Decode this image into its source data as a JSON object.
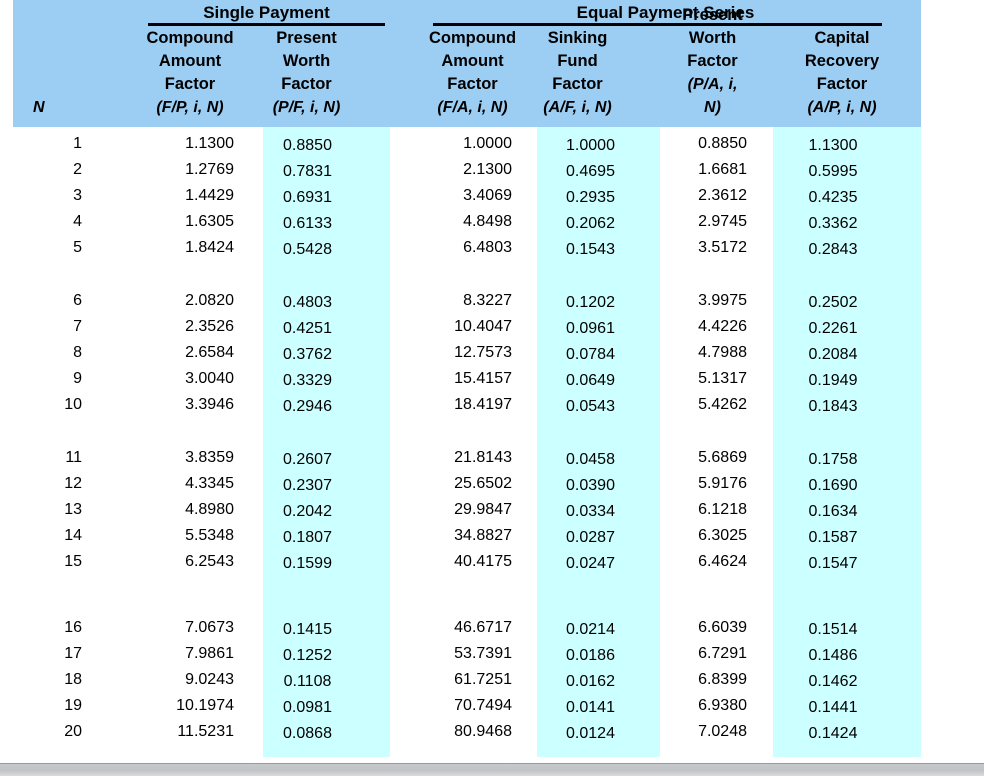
{
  "colors": {
    "header_bg": "#9CCEF4",
    "band_bg": "#CCFFFF",
    "text": "#000000",
    "window_bar": "#C2C5C8"
  },
  "table": {
    "group_headers": [
      {
        "label": "Single Payment"
      },
      {
        "label": "Equal Payment Series"
      }
    ],
    "columns": [
      {
        "id": "n",
        "lines": [],
        "notation": "N"
      },
      {
        "id": "fp",
        "lines": [
          "Compound",
          "Amount",
          "Factor"
        ],
        "notation": "(F/P, i, N)"
      },
      {
        "id": "pf",
        "lines": [
          "Present",
          "Worth Factor"
        ],
        "notation": "(P/F, i, N)"
      },
      {
        "id": "fa",
        "lines": [
          "Compound",
          "Amount",
          "Factor"
        ],
        "notation": "(F/A, i, N)"
      },
      {
        "id": "af",
        "lines": [
          "Sinking",
          "Fund",
          "Factor"
        ],
        "notation": "(A/F, i, N)"
      },
      {
        "id": "pa",
        "lines": [
          "Present",
          "Worth Factor"
        ],
        "notation": "(P/A, i, N)"
      },
      {
        "id": "ap",
        "lines": [
          "Capital",
          "Recovery",
          "Factor"
        ],
        "notation": "(A/P, i, N)"
      }
    ],
    "rows": [
      [
        "1",
        "1.1300",
        "0.8850",
        "1.0000",
        "1.0000",
        "0.8850",
        "1.1300"
      ],
      [
        "2",
        "1.2769",
        "0.7831",
        "2.1300",
        "0.4695",
        "1.6681",
        "0.5995"
      ],
      [
        "3",
        "1.4429",
        "0.6931",
        "3.4069",
        "0.2935",
        "2.3612",
        "0.4235"
      ],
      [
        "4",
        "1.6305",
        "0.6133",
        "4.8498",
        "0.2062",
        "2.9745",
        "0.3362"
      ],
      [
        "5",
        "1.8424",
        "0.5428",
        "6.4803",
        "0.1543",
        "3.5172",
        "0.2843"
      ],
      [
        "6",
        "2.0820",
        "0.4803",
        "8.3227",
        "0.1202",
        "3.9975",
        "0.2502"
      ],
      [
        "7",
        "2.3526",
        "0.4251",
        "10.4047",
        "0.0961",
        "4.4226",
        "0.2261"
      ],
      [
        "8",
        "2.6584",
        "0.3762",
        "12.7573",
        "0.0784",
        "4.7988",
        "0.2084"
      ],
      [
        "9",
        "3.0040",
        "0.3329",
        "15.4157",
        "0.0649",
        "5.1317",
        "0.1949"
      ],
      [
        "10",
        "3.3946",
        "0.2946",
        "18.4197",
        "0.0543",
        "5.4262",
        "0.1843"
      ],
      [
        "11",
        "3.8359",
        "0.2607",
        "21.8143",
        "0.0458",
        "5.6869",
        "0.1758"
      ],
      [
        "12",
        "4.3345",
        "0.2307",
        "25.6502",
        "0.0390",
        "5.9176",
        "0.1690"
      ],
      [
        "13",
        "4.8980",
        "0.2042",
        "29.9847",
        "0.0334",
        "6.1218",
        "0.1634"
      ],
      [
        "14",
        "5.5348",
        "0.1807",
        "34.8827",
        "0.0287",
        "6.3025",
        "0.1587"
      ],
      [
        "15",
        "6.2543",
        "0.1599",
        "40.4175",
        "0.0247",
        "6.4624",
        "0.1547"
      ],
      [
        "16",
        "7.0673",
        "0.1415",
        "46.6717",
        "0.0214",
        "6.6039",
        "0.1514"
      ],
      [
        "17",
        "7.9861",
        "0.1252",
        "53.7391",
        "0.0186",
        "6.7291",
        "0.1486"
      ],
      [
        "18",
        "9.0243",
        "0.1108",
        "61.7251",
        "0.0162",
        "6.8399",
        "0.1462"
      ],
      [
        "19",
        "10.1974",
        "0.0981",
        "70.7494",
        "0.0141",
        "6.9380",
        "0.1441"
      ],
      [
        "20",
        "11.5231",
        "0.0868",
        "80.9468",
        "0.0124",
        "7.0248",
        "0.1424"
      ]
    ]
  },
  "chart_data": {
    "type": "table",
    "title": "",
    "group_headers": [
      "Single Payment",
      "Equal Payment Series"
    ],
    "columns": [
      "N",
      "Compound Amount Factor (F/P, i, N)",
      "Present Worth Factor (P/F, i, N)",
      "Compound Amount Factor (F/A, i, N)",
      "Sinking Fund Factor (A/F, i, N)",
      "Present Worth Factor (P/A, i, N)",
      "Capital Recovery Factor (A/P, i, N)"
    ],
    "rows": [
      [
        1,
        1.13,
        0.885,
        1.0,
        1.0,
        0.885,
        1.13
      ],
      [
        2,
        1.2769,
        0.7831,
        2.13,
        0.4695,
        1.6681,
        0.5995
      ],
      [
        3,
        1.4429,
        0.6931,
        3.4069,
        0.2935,
        2.3612,
        0.4235
      ],
      [
        4,
        1.6305,
        0.6133,
        4.8498,
        0.2062,
        2.9745,
        0.3362
      ],
      [
        5,
        1.8424,
        0.5428,
        6.4803,
        0.1543,
        3.5172,
        0.2843
      ],
      [
        6,
        2.082,
        0.4803,
        8.3227,
        0.1202,
        3.9975,
        0.2502
      ],
      [
        7,
        2.3526,
        0.4251,
        10.4047,
        0.0961,
        4.4226,
        0.2261
      ],
      [
        8,
        2.6584,
        0.3762,
        12.7573,
        0.0784,
        4.7988,
        0.2084
      ],
      [
        9,
        3.004,
        0.3329,
        15.4157,
        0.0649,
        5.1317,
        0.1949
      ],
      [
        10,
        3.3946,
        0.2946,
        18.4197,
        0.0543,
        5.4262,
        0.1843
      ],
      [
        11,
        3.8359,
        0.2607,
        21.8143,
        0.0458,
        5.6869,
        0.1758
      ],
      [
        12,
        4.3345,
        0.2307,
        25.6502,
        0.039,
        5.9176,
        0.169
      ],
      [
        13,
        4.898,
        0.2042,
        29.9847,
        0.0334,
        6.1218,
        0.1634
      ],
      [
        14,
        5.5348,
        0.1807,
        34.8827,
        0.0287,
        6.3025,
        0.1587
      ],
      [
        15,
        6.2543,
        0.1599,
        40.4175,
        0.0247,
        6.4624,
        0.1547
      ],
      [
        16,
        7.0673,
        0.1415,
        46.6717,
        0.0214,
        6.6039,
        0.1514
      ],
      [
        17,
        7.9861,
        0.1252,
        53.7391,
        0.0186,
        6.7291,
        0.1486
      ],
      [
        18,
        9.0243,
        0.1108,
        61.7251,
        0.0162,
        6.8399,
        0.1462
      ],
      [
        19,
        10.1974,
        0.0981,
        70.7494,
        0.0141,
        6.938,
        0.1441
      ],
      [
        20,
        11.5231,
        0.0868,
        80.9468,
        0.0124,
        7.0248,
        0.1424
      ]
    ]
  }
}
